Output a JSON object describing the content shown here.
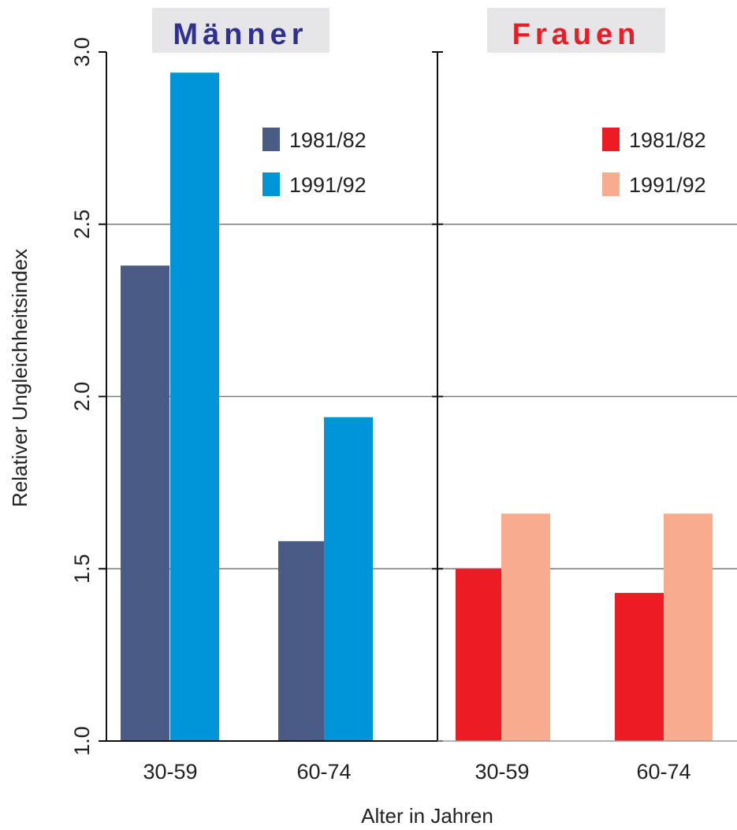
{
  "chart_data": {
    "type": "bar",
    "ylabel": "Relativer Ungleichheitsindex",
    "xlabel": "Alter in Jahren",
    "ylim": [
      1.0,
      3.0
    ],
    "yticks": [
      "1.0",
      "1.5",
      "2.0",
      "2.5",
      "3.0"
    ],
    "grid": true,
    "panels": [
      {
        "title": "Männer",
        "title_color": "#2E3192",
        "categories": [
          "30-59",
          "60-74"
        ],
        "legend_position": "top-right",
        "series": [
          {
            "name": "1981/82",
            "color": "#4A5B86",
            "values": [
              2.38,
              1.58
            ]
          },
          {
            "name": "1991/92",
            "color": "#0095D9",
            "values": [
              2.94,
              1.94
            ]
          }
        ]
      },
      {
        "title": "Frauen",
        "title_color": "#ED1C24",
        "categories": [
          "30-59",
          "60-74"
        ],
        "legend_position": "top-right",
        "series": [
          {
            "name": "1981/82",
            "color": "#ED1C24",
            "values": [
              1.5,
              1.43
            ]
          },
          {
            "name": "1991/92",
            "color": "#F9AB8F",
            "values": [
              1.66,
              1.66
            ]
          }
        ]
      }
    ]
  }
}
